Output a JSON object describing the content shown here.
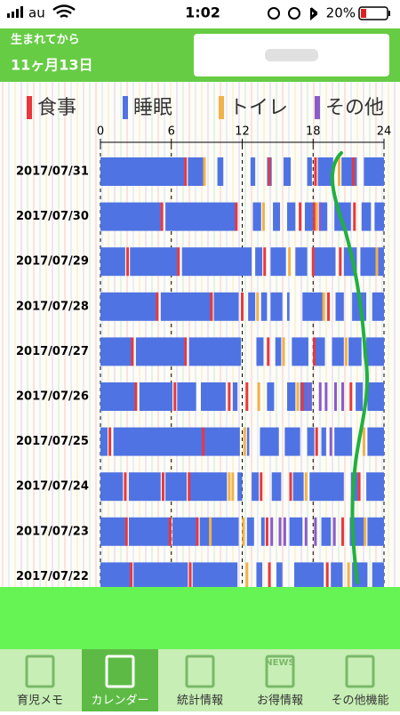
{
  "status_bar": {
    "carrier": "au",
    "time": "1:02",
    "battery": "20%"
  },
  "header": {
    "label": "生まれてから",
    "age": "11ヶ月13日"
  },
  "chart": {
    "legend": [
      {
        "name": "食事",
        "color": "#e8383d"
      },
      {
        "name": "睡眠",
        "color": "#4f73e3"
      },
      {
        "name": "トイレ",
        "color": "#f2b24a"
      },
      {
        "name": "その他",
        "color": "#8a5cc8"
      }
    ],
    "xlim": [
      0,
      24
    ],
    "xticks": [
      0,
      6,
      12,
      18,
      24
    ],
    "rows": [
      {
        "date": "2017/07/31",
        "sleep": [
          [
            0,
            7.1
          ],
          [
            7.4,
            8.7
          ],
          [
            9.9,
            10.4
          ],
          [
            12.7,
            13.1
          ],
          [
            14.1,
            14.5
          ],
          [
            15.5,
            16.1
          ],
          [
            17.5,
            17.9
          ],
          [
            18.4,
            19.7
          ],
          [
            20.4,
            21.7
          ],
          [
            22.3,
            24
          ]
        ],
        "meal": [
          7.2,
          14.3,
          18.2,
          21.4
        ],
        "toilet": [
          8.8,
          20.2
        ],
        "other": []
      },
      {
        "date": "2017/07/30",
        "sleep": [
          [
            0,
            5.1
          ],
          [
            5.5,
            11.4
          ],
          [
            12.9,
            13.6
          ],
          [
            14.6,
            15.2
          ],
          [
            15.8,
            16.5
          ],
          [
            17.3,
            18
          ],
          [
            18.5,
            19.2
          ],
          [
            19.8,
            21.2
          ],
          [
            22.1,
            22.9
          ],
          [
            23.2,
            24
          ]
        ],
        "meal": [
          5.2,
          11.5,
          16.9,
          18.1,
          21.5
        ],
        "toilet": [
          13.8,
          18.3
        ],
        "other": [
          18.6
        ]
      },
      {
        "date": "2017/07/29",
        "sleep": [
          [
            0,
            2.1
          ],
          [
            2.5,
            6.5
          ],
          [
            6.9,
            12.8
          ],
          [
            13.1,
            13.7
          ],
          [
            14.4,
            15.7
          ],
          [
            16.5,
            17.5
          ],
          [
            18.1,
            19.9
          ],
          [
            20.6,
            21.7
          ],
          [
            22,
            23.3
          ],
          [
            23.5,
            24
          ]
        ],
        "meal": [
          2.3,
          6.6,
          13.9,
          18,
          20.3
        ],
        "toilet": [
          16,
          23.4
        ],
        "other": []
      },
      {
        "date": "2017/07/28",
        "sleep": [
          [
            0,
            4.7
          ],
          [
            5.1,
            9.3
          ],
          [
            9.6,
            11.7
          ],
          [
            12.5,
            13.1
          ],
          [
            13.6,
            14.1
          ],
          [
            14.4,
            15.4
          ],
          [
            15.8,
            16
          ],
          [
            17.1,
            18.8
          ],
          [
            19.9,
            20.6
          ],
          [
            21.3,
            22.5
          ],
          [
            23,
            24
          ]
        ],
        "meal": [
          4.8,
          9.4,
          12,
          19.3
        ],
        "toilet": [
          13.3,
          18.9
        ],
        "other": []
      },
      {
        "date": "2017/07/27",
        "sleep": [
          [
            0,
            2.6
          ],
          [
            3,
            7.1
          ],
          [
            7.5,
            11.9
          ],
          [
            13.2,
            13.8
          ],
          [
            14.8,
            15.3
          ],
          [
            16.2,
            17.6
          ],
          [
            18.2,
            19
          ],
          [
            19.6,
            20.6
          ],
          [
            21,
            22.1
          ],
          [
            22.5,
            24
          ]
        ],
        "meal": [
          2.7,
          7.2,
          14.2,
          18.1
        ],
        "toilet": [
          15.5,
          20.8
        ],
        "other": []
      },
      {
        "date": "2017/07/26",
        "sleep": [
          [
            0,
            2.9
          ],
          [
            3.3,
            6.1
          ],
          [
            6.5,
            8.1
          ],
          [
            8.5,
            10.6
          ],
          [
            11.2,
            11.6
          ],
          [
            14.1,
            14.7
          ],
          [
            15.8,
            16.5
          ],
          [
            16.9,
            17.9
          ],
          [
            21.6,
            22.2
          ],
          [
            22.6,
            24
          ]
        ],
        "meal": [
          3,
          6.3,
          10.9,
          12.4,
          17.1,
          21.2
        ],
        "toilet": [
          13.4,
          16.7
        ],
        "other": [
          17.6,
          18.6,
          19.1,
          19.9,
          20.5
        ]
      },
      {
        "date": "2017/07/25",
        "sleep": [
          [
            0,
            0.6
          ],
          [
            1.1,
            11.8
          ],
          [
            12.4,
            12.6
          ],
          [
            13.5,
            15.1
          ],
          [
            15.6,
            16.9
          ],
          [
            17.5,
            18.1
          ],
          [
            18.7,
            19.1
          ],
          [
            19.8,
            21.3
          ],
          [
            22.6,
            24
          ]
        ],
        "meal": [
          0.8,
          8.7,
          18.3
        ],
        "toilet": [
          12.2,
          22.3
        ],
        "other": [
          19.5
        ]
      },
      {
        "date": "2017/07/24",
        "sleep": [
          [
            0,
            1.9
          ],
          [
            2.4,
            5.1
          ],
          [
            5.5,
            7.3
          ],
          [
            7.6,
            10.7
          ],
          [
            11.6,
            12
          ],
          [
            12.8,
            13.4
          ],
          [
            14.5,
            15.3
          ],
          [
            16.3,
            17.2
          ],
          [
            17.7,
            20.6
          ],
          [
            21.2,
            21.8
          ],
          [
            22.5,
            24
          ]
        ],
        "meal": [
          2.1,
          5.3,
          7.5,
          13.6,
          16.1,
          21.9
        ],
        "toilet": [
          10.9,
          11.2,
          17.4
        ],
        "other": []
      },
      {
        "date": "2017/07/23",
        "sleep": [
          [
            0,
            2.1
          ],
          [
            2.4,
            5.8
          ],
          [
            6.1,
            8.1
          ],
          [
            8.4,
            11.7
          ],
          [
            12.4,
            13
          ],
          [
            13.6,
            13.9
          ],
          [
            16,
            17.1
          ],
          [
            18.7,
            19.5
          ],
          [
            21.1,
            22.3
          ],
          [
            22.6,
            24
          ]
        ],
        "meal": [
          2.2,
          5.9,
          8.2,
          14.1,
          20.5
        ],
        "toilet": [
          9.3,
          12.1,
          22.4
        ],
        "other": [
          14.5,
          15.2,
          15.6,
          17.4,
          18.2,
          19.8
        ]
      },
      {
        "date": "2017/07/22",
        "sleep": [
          [
            0,
            2.5
          ],
          [
            2.8,
            7.4
          ],
          [
            7.8,
            11.6
          ],
          [
            13.2,
            13.7
          ],
          [
            14.9,
            15.4
          ],
          [
            16.4,
            18.9
          ],
          [
            19.5,
            20.5
          ],
          [
            21.3,
            22.6
          ],
          [
            23,
            24
          ]
        ],
        "meal": [
          2.6,
          7.6,
          14.3,
          19.2
        ],
        "toilet": [
          12.4,
          21
        ],
        "other": []
      }
    ]
  },
  "tabs": [
    {
      "label": "育児メモ"
    },
    {
      "label": "カレンダー",
      "selected": true
    },
    {
      "label": "統計情報"
    },
    {
      "label": "お得情報",
      "icon_text": "NEWS"
    },
    {
      "label": "その他機能"
    }
  ]
}
